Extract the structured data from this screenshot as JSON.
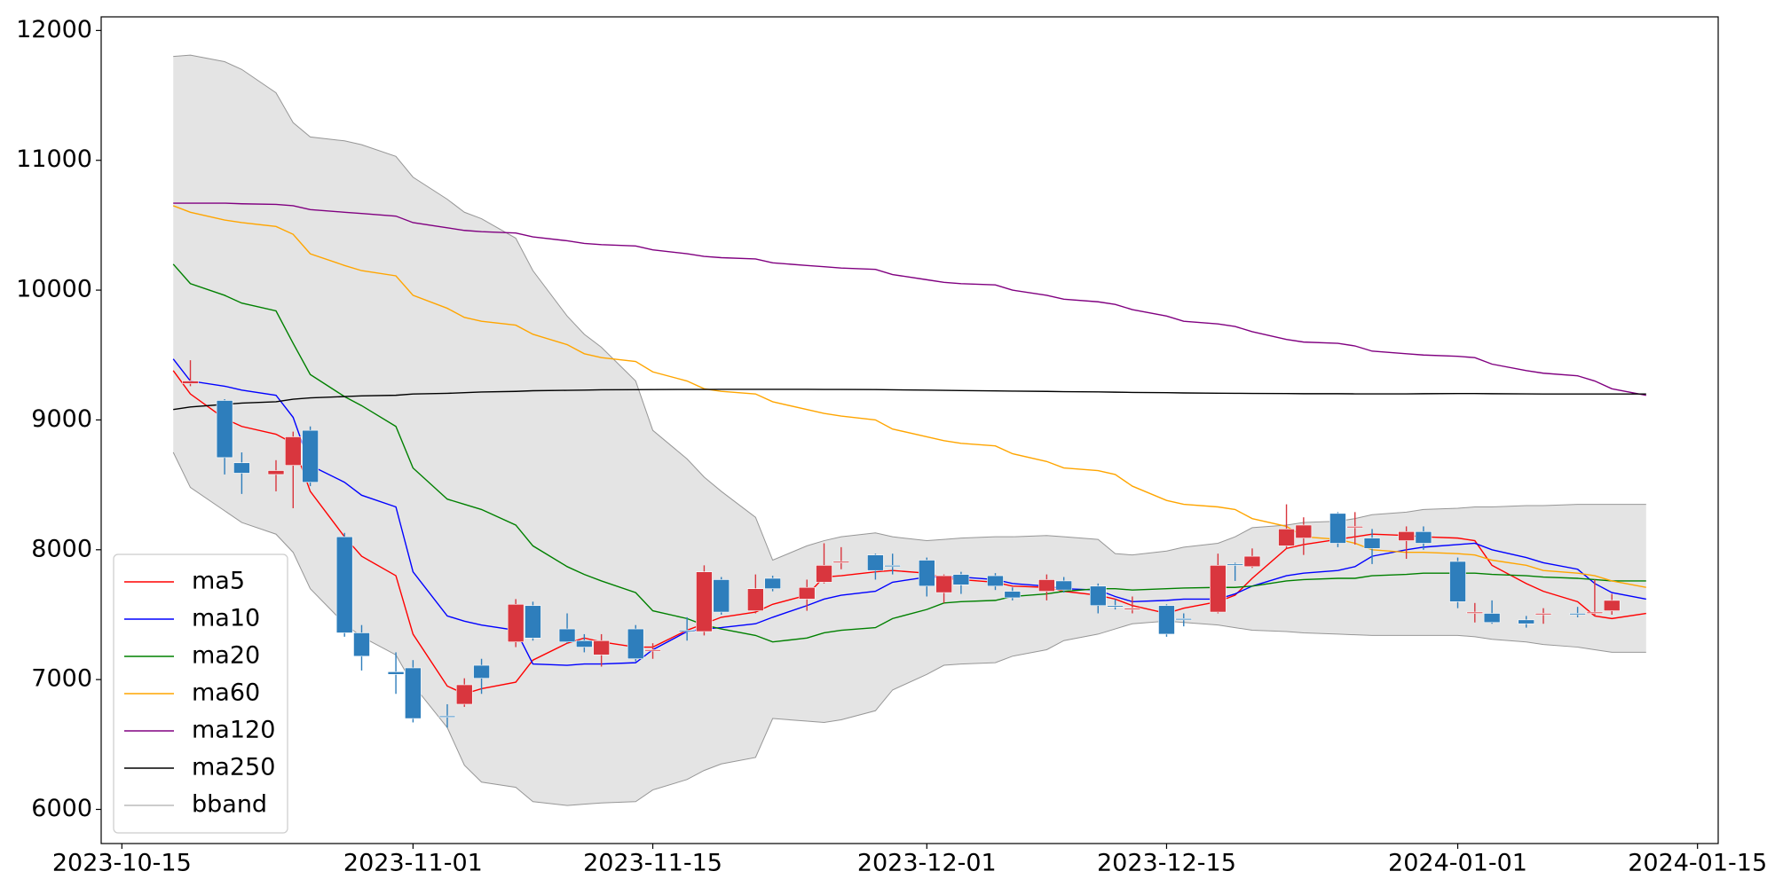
{
  "chart_data": {
    "type": "candlestick",
    "x": [
      "2023-10-18",
      "2023-10-19",
      "2023-10-21",
      "2023-10-22",
      "2023-10-24",
      "2023-10-25",
      "2023-10-26",
      "2023-10-28",
      "2023-10-29",
      "2023-10-31",
      "2023-11-01",
      "2023-11-03",
      "2023-11-04",
      "2023-11-05",
      "2023-11-07",
      "2023-11-08",
      "2023-11-10",
      "2023-11-11",
      "2023-11-12",
      "2023-11-14",
      "2023-11-15",
      "2023-11-17",
      "2023-11-18",
      "2023-11-19",
      "2023-11-21",
      "2023-11-22",
      "2023-11-24",
      "2023-11-25",
      "2023-11-26",
      "2023-11-28",
      "2023-11-29",
      "2023-12-01",
      "2023-12-02",
      "2023-12-03",
      "2023-12-05",
      "2023-12-06",
      "2023-12-08",
      "2023-12-09",
      "2023-12-11",
      "2023-12-12",
      "2023-12-13",
      "2023-12-15",
      "2023-12-16",
      "2023-12-18",
      "2023-12-19",
      "2023-12-20",
      "2023-12-22",
      "2023-12-23",
      "2023-12-25",
      "2023-12-26",
      "2023-12-27",
      "2023-12-29",
      "2023-12-30",
      "2024-01-01",
      "2024-01-02",
      "2024-01-03",
      "2024-01-05",
      "2024-01-06",
      "2024-01-08",
      "2024-01-09",
      "2024-01-10",
      "2024-01-12"
    ],
    "open": [
      null,
      9280,
      9150,
      8670,
      8580,
      8650,
      8920,
      8100,
      7360,
      7060,
      7090,
      6720,
      6810,
      7110,
      7290,
      7570,
      7390,
      7300,
      7190,
      7390,
      7220,
      7380,
      7370,
      7770,
      7530,
      7780,
      7620,
      7750,
      7900,
      7960,
      7880,
      7920,
      7670,
      7810,
      7800,
      7680,
      7680,
      7760,
      7720,
      7570,
      7540,
      7570,
      7470,
      7520,
      7890,
      7870,
      8030,
      8090,
      8280,
      8170,
      8090,
      8070,
      8140,
      7910,
      7510,
      7510,
      7460,
      7500,
      7510,
      7510,
      7530,
      null
    ],
    "high": [
      null,
      9460,
      9160,
      8750,
      8690,
      8910,
      8950,
      8130,
      7420,
      7210,
      7150,
      6810,
      7010,
      7160,
      7620,
      7600,
      7510,
      7350,
      7350,
      7420,
      7280,
      7480,
      7880,
      7790,
      7810,
      7800,
      7770,
      8050,
      8020,
      7970,
      7970,
      7940,
      7810,
      7830,
      7820,
      7710,
      7810,
      7790,
      7740,
      7620,
      7640,
      7580,
      7510,
      7970,
      7900,
      8010,
      8350,
      8250,
      8290,
      8290,
      8160,
      8180,
      8180,
      7940,
      7590,
      7610,
      7490,
      7550,
      7560,
      7770,
      7660,
      null
    ],
    "low": [
      null,
      9260,
      8580,
      8430,
      8450,
      8320,
      8490,
      7330,
      7070,
      6890,
      6670,
      6630,
      6790,
      6890,
      7250,
      7300,
      7280,
      7210,
      7100,
      7140,
      7160,
      7300,
      7340,
      7500,
      7510,
      7680,
      7530,
      7740,
      7850,
      7770,
      7810,
      7640,
      7590,
      7660,
      7690,
      7610,
      7610,
      7670,
      7510,
      7540,
      7510,
      7330,
      7410,
      7510,
      7760,
      7860,
      8010,
      7960,
      8020,
      8040,
      7890,
      7930,
      8000,
      7550,
      7440,
      7430,
      7400,
      7430,
      7480,
      7490,
      7500,
      null
    ],
    "close": [
      null,
      9300,
      8710,
      8590,
      8610,
      8870,
      8520,
      7360,
      7180,
      7040,
      6700,
      6710,
      6960,
      7010,
      7580,
      7320,
      7290,
      7250,
      7300,
      7160,
      7230,
      7370,
      7830,
      7520,
      7700,
      7700,
      7710,
      7880,
      7910,
      7840,
      7870,
      7720,
      7800,
      7730,
      7720,
      7630,
      7770,
      7690,
      7570,
      7560,
      7550,
      7350,
      7460,
      7880,
      7880,
      7950,
      8160,
      8190,
      8050,
      8180,
      8010,
      8140,
      8050,
      7600,
      7520,
      7440,
      7430,
      7510,
      7500,
      7520,
      7610,
      null
    ],
    "up_color": "#d9363e",
    "down_color": "#2e7ebc",
    "series": [
      {
        "name": "ma5",
        "color": "red",
        "values": [
          9380,
          9200,
          9010,
          8950,
          8890,
          8820,
          8450,
          8100,
          7950,
          7800,
          7350,
          6950,
          6890,
          6930,
          6980,
          7150,
          7280,
          7320,
          7290,
          7250,
          7250,
          7380,
          7430,
          7480,
          7520,
          7580,
          7650,
          7790,
          7800,
          7830,
          7840,
          7820,
          7780,
          7770,
          7750,
          7720,
          7710,
          7680,
          7650,
          7620,
          7570,
          7510,
          7550,
          7600,
          7650,
          7780,
          8010,
          8040,
          8080,
          8100,
          8120,
          8110,
          8100,
          8090,
          8070,
          7880,
          7740,
          7680,
          7600,
          7490,
          7470,
          7510
        ]
      },
      {
        "name": "ma10",
        "color": "blue",
        "values": [
          9470,
          9300,
          9260,
          9230,
          9190,
          9020,
          8650,
          8520,
          8420,
          8330,
          7830,
          7490,
          7450,
          7420,
          7380,
          7120,
          7110,
          7120,
          7120,
          7130,
          7230,
          7370,
          7390,
          7400,
          7430,
          7480,
          7570,
          7620,
          7650,
          7680,
          7750,
          7790,
          7790,
          7790,
          7770,
          7740,
          7720,
          7700,
          7690,
          7640,
          7600,
          7610,
          7620,
          7620,
          7660,
          7720,
          7800,
          7820,
          7840,
          7870,
          7950,
          8000,
          8020,
          8040,
          8050,
          8000,
          7940,
          7900,
          7850,
          7740,
          7670,
          7620
        ]
      },
      {
        "name": "ma20",
        "color": "green",
        "values": [
          10200,
          10050,
          9960,
          9900,
          9840,
          9590,
          9350,
          9180,
          9110,
          8950,
          8630,
          8390,
          8350,
          8310,
          8190,
          8030,
          7870,
          7810,
          7760,
          7670,
          7530,
          7470,
          7420,
          7390,
          7340,
          7290,
          7320,
          7360,
          7380,
          7400,
          7470,
          7540,
          7590,
          7600,
          7610,
          7640,
          7660,
          7680,
          7700,
          7700,
          7690,
          7700,
          7705,
          7710,
          7710,
          7720,
          7760,
          7770,
          7780,
          7780,
          7800,
          7810,
          7820,
          7820,
          7820,
          7810,
          7800,
          7790,
          7780,
          7770,
          7760,
          7760
        ]
      },
      {
        "name": "ma60",
        "color": "orange",
        "values": [
          10650,
          10600,
          10540,
          10520,
          10490,
          10430,
          10280,
          10190,
          10150,
          10110,
          9960,
          9860,
          9790,
          9760,
          9730,
          9660,
          9580,
          9510,
          9480,
          9450,
          9370,
          9300,
          9240,
          9220,
          9200,
          9140,
          9080,
          9050,
          9030,
          9000,
          8930,
          8870,
          8840,
          8820,
          8800,
          8740,
          8680,
          8630,
          8610,
          8580,
          8490,
          8380,
          8350,
          8330,
          8310,
          8240,
          8180,
          8100,
          8080,
          8050,
          8000,
          7980,
          7980,
          7970,
          7960,
          7920,
          7880,
          7840,
          7820,
          7800,
          7760,
          7710
        ]
      },
      {
        "name": "ma120",
        "color": "purple",
        "values": [
          10670,
          10670,
          10670,
          10665,
          10660,
          10650,
          10620,
          10600,
          10590,
          10570,
          10520,
          10480,
          10460,
          10450,
          10440,
          10410,
          10380,
          10360,
          10350,
          10340,
          10310,
          10280,
          10260,
          10250,
          10240,
          10210,
          10190,
          10180,
          10170,
          10160,
          10120,
          10080,
          10060,
          10050,
          10040,
          10000,
          9960,
          9930,
          9910,
          9890,
          9850,
          9800,
          9760,
          9740,
          9720,
          9680,
          9620,
          9600,
          9590,
          9570,
          9530,
          9510,
          9500,
          9490,
          9480,
          9430,
          9380,
          9360,
          9340,
          9300,
          9240,
          9190
        ]
      },
      {
        "name": "ma250",
        "color": "black",
        "values": [
          9080,
          9100,
          9120,
          9130,
          9140,
          9160,
          9170,
          9180,
          9185,
          9190,
          9200,
          9205,
          9210,
          9215,
          9220,
          9225,
          9228,
          9230,
          9232,
          9233,
          9234,
          9235,
          9235,
          9236,
          9236,
          9236,
          9236,
          9235,
          9235,
          9234,
          9232,
          9230,
          9228,
          9226,
          9224,
          9222,
          9220,
          9218,
          9216,
          9214,
          9212,
          9210,
          9208,
          9206,
          9205,
          9204,
          9203,
          9202,
          9202,
          9201,
          9201,
          9201,
          9202,
          9203,
          9203,
          9202,
          9201,
          9200,
          9200,
          9200,
          9200,
          9200
        ]
      },
      {
        "name": "bband",
        "color": "gray",
        "fill": "#e4e4e4",
        "upper": [
          11800,
          11810,
          11760,
          11700,
          11520,
          11290,
          11180,
          11150,
          11120,
          11030,
          10870,
          10700,
          10600,
          10550,
          10400,
          10150,
          9800,
          9660,
          9560,
          9300,
          8920,
          8700,
          8560,
          8450,
          8250,
          7920,
          8030,
          8070,
          8100,
          8130,
          8100,
          8070,
          8080,
          8090,
          8100,
          8100,
          8110,
          8100,
          8080,
          7970,
          7960,
          7990,
          8020,
          8050,
          8100,
          8170,
          8190,
          8210,
          8220,
          8240,
          8270,
          8290,
          8310,
          8320,
          8330,
          8330,
          8340,
          8340,
          8350,
          8350,
          8350,
          8350
        ],
        "lower": [
          8750,
          8480,
          8300,
          8210,
          8120,
          7980,
          7700,
          7430,
          7330,
          7190,
          6960,
          6630,
          6340,
          6210,
          6170,
          6060,
          6030,
          6040,
          6050,
          6060,
          6150,
          6230,
          6300,
          6350,
          6400,
          6700,
          6680,
          6670,
          6690,
          6760,
          6920,
          7040,
          7110,
          7120,
          7130,
          7180,
          7230,
          7300,
          7350,
          7390,
          7430,
          7450,
          7440,
          7420,
          7400,
          7380,
          7370,
          7360,
          7350,
          7345,
          7340,
          7340,
          7340,
          7340,
          7330,
          7310,
          7290,
          7270,
          7250,
          7230,
          7210,
          7210
        ]
      }
    ],
    "xlim": [
      "2023-10-13T19:00",
      "2024-01-16T05:00"
    ],
    "xticks": [
      "2023-10-15",
      "2023-11-01",
      "2023-11-15",
      "2023-12-01",
      "2023-12-15",
      "2024-01-01",
      "2024-01-15"
    ],
    "ylim": [
      5737,
      12105
    ],
    "yticks": [
      6000,
      7000,
      8000,
      9000,
      10000,
      11000,
      12000
    ],
    "legend": "lower left"
  }
}
